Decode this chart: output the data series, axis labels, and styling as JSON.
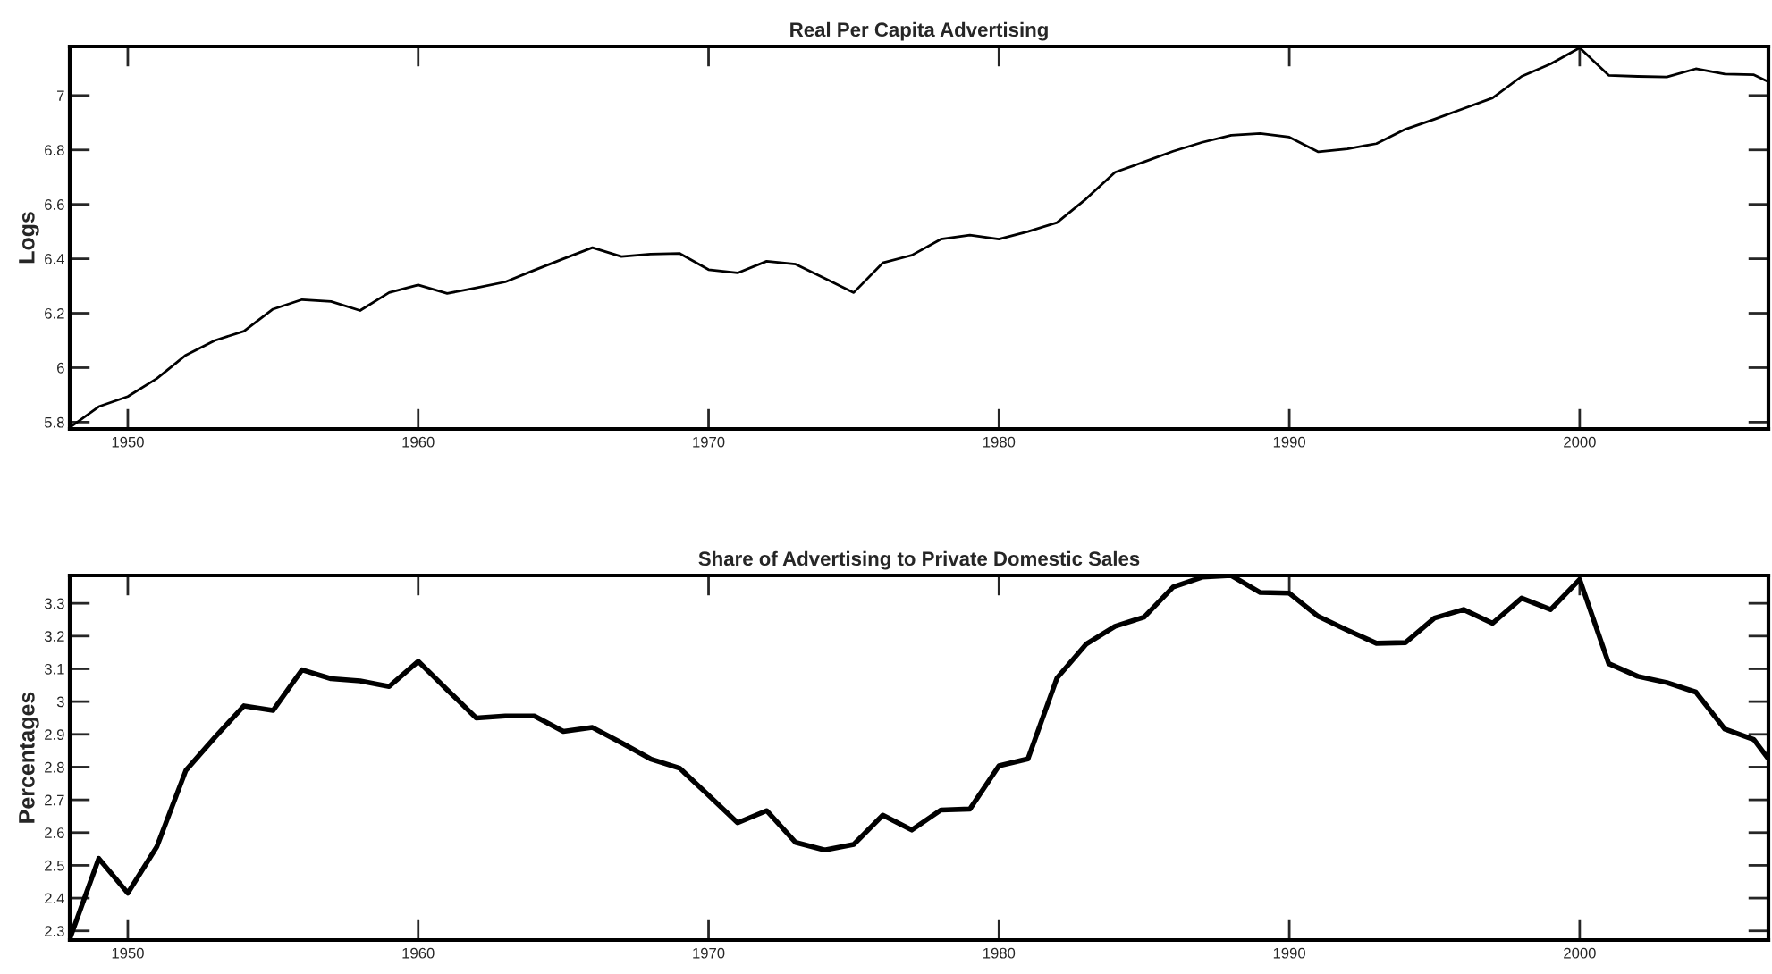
{
  "chart_data": [
    {
      "type": "line",
      "title": "Real Per Capita Advertising",
      "ylabel": "Logs",
      "x": [
        1948,
        1949,
        1950,
        1951,
        1952,
        1953,
        1954,
        1955,
        1956,
        1957,
        1958,
        1959,
        1960,
        1961,
        1962,
        1963,
        1964,
        1965,
        1966,
        1967,
        1968,
        1969,
        1970,
        1971,
        1972,
        1973,
        1974,
        1975,
        1976,
        1977,
        1978,
        1979,
        1980,
        1981,
        1982,
        1983,
        1984,
        1985,
        1986,
        1987,
        1988,
        1989,
        1990,
        1991,
        1992,
        1993,
        1994,
        1995,
        1996,
        1997,
        1998,
        1999,
        2000,
        2001,
        2002,
        2003,
        2004,
        2005,
        2006,
        2006.5
      ],
      "series": [
        {
          "color": "#000000",
          "values": [
            5.78,
            5.857,
            5.894,
            5.96,
            6.046,
            6.1,
            6.134,
            6.215,
            6.25,
            6.243,
            6.21,
            6.276,
            6.304,
            6.273,
            6.293,
            6.315,
            6.358,
            6.4,
            6.441,
            6.408,
            6.417,
            6.42,
            6.36,
            6.348,
            6.391,
            6.38,
            6.328,
            6.276,
            6.385,
            6.413,
            6.472,
            6.487,
            6.472,
            6.5,
            6.533,
            6.62,
            6.718,
            6.756,
            6.795,
            6.828,
            6.854,
            6.86,
            6.847,
            6.793,
            6.804,
            6.823,
            6.876,
            6.913,
            6.952,
            6.991,
            7.07,
            7.116,
            7.175,
            7.074,
            7.07,
            7.068,
            7.098,
            7.079,
            7.076,
            7.05
          ]
        }
      ],
      "xlim": [
        1948,
        2006.5
      ],
      "xticks": [
        1950,
        1960,
        1970,
        1980,
        1990,
        2000
      ],
      "ylim": [
        5.775,
        7.18
      ],
      "yticks": [
        5.8,
        6,
        6.2,
        6.4,
        6.6,
        6.8,
        7
      ],
      "grid": false,
      "legend": false
    },
    {
      "type": "line",
      "title": "Share of Advertising to Private Domestic Sales",
      "ylabel": "Percentages",
      "x": [
        1948,
        1949,
        1950,
        1951,
        1952,
        1953,
        1954,
        1955,
        1956,
        1957,
        1958,
        1959,
        1960,
        1961,
        1962,
        1963,
        1964,
        1965,
        1966,
        1967,
        1968,
        1969,
        1970,
        1971,
        1972,
        1973,
        1974,
        1975,
        1976,
        1977,
        1978,
        1979,
        1980,
        1981,
        1982,
        1983,
        1984,
        1985,
        1986,
        1987,
        1988,
        1989,
        1990,
        1991,
        1992,
        1993,
        1994,
        1995,
        1996,
        1997,
        1998,
        1999,
        2000,
        2001,
        2002,
        2003,
        2004,
        2005,
        2006,
        2006.5
      ],
      "series": [
        {
          "color": "#000000",
          "values": [
            2.275,
            2.521,
            2.415,
            2.557,
            2.79,
            2.891,
            2.987,
            2.973,
            3.097,
            3.07,
            3.063,
            3.046,
            3.123,
            3.036,
            2.95,
            2.956,
            2.956,
            2.909,
            2.921,
            2.874,
            2.825,
            2.797,
            2.714,
            2.63,
            2.667,
            2.57,
            2.547,
            2.564,
            2.653,
            2.608,
            2.669,
            2.672,
            2.804,
            2.825,
            3.072,
            3.175,
            3.23,
            3.258,
            3.35,
            3.38,
            3.385,
            3.333,
            3.331,
            3.26,
            3.218,
            3.178,
            3.18,
            3.255,
            3.281,
            3.239,
            3.316,
            3.281,
            3.373,
            3.116,
            3.077,
            3.058,
            3.029,
            2.916,
            2.884,
            2.825
          ]
        }
      ],
      "xlim": [
        1948,
        2006.5
      ],
      "xticks": [
        1950,
        1960,
        1970,
        1980,
        1990,
        2000
      ],
      "ylim": [
        2.272,
        3.385
      ],
      "yticks": [
        2.3,
        2.4,
        2.5,
        2.6,
        2.7,
        2.8,
        2.9,
        3,
        3.1,
        3.2,
        3.3
      ],
      "grid": false,
      "legend": false
    }
  ]
}
